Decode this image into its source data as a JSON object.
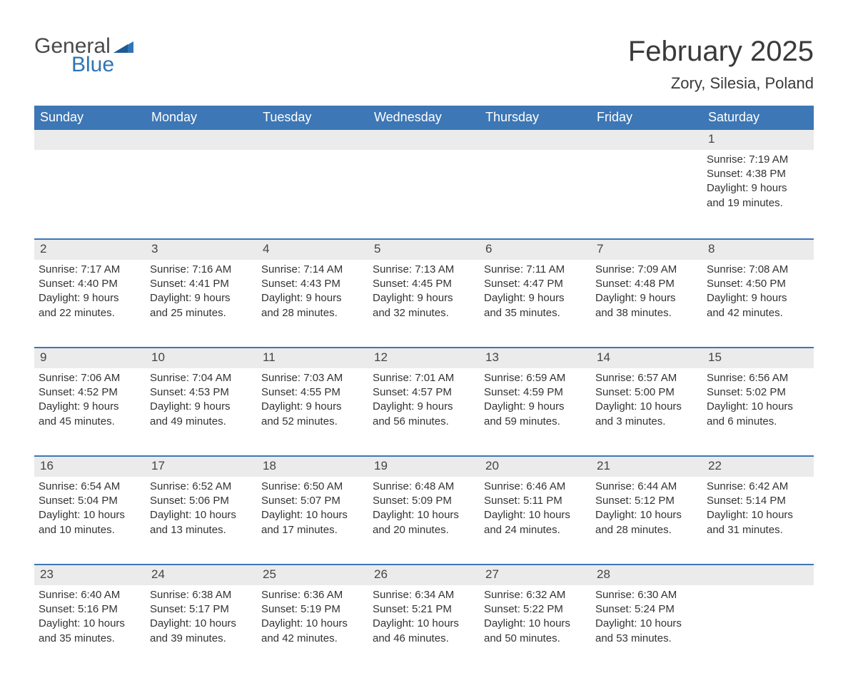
{
  "colors": {
    "header_bg": "#3d77b5",
    "header_text": "#ffffff",
    "daynum_bg": "#ebebeb",
    "border": "#3d77b5",
    "body_text": "#333333",
    "logo_gray": "#4a4a4a",
    "logo_blue": "#2f75b5",
    "page_bg": "#ffffff"
  },
  "logo": {
    "word1": "General",
    "word2": "Blue"
  },
  "title": "February 2025",
  "location": "Zory, Silesia, Poland",
  "day_headers": [
    "Sunday",
    "Monday",
    "Tuesday",
    "Wednesday",
    "Thursday",
    "Friday",
    "Saturday"
  ],
  "weeks": [
    [
      null,
      null,
      null,
      null,
      null,
      null,
      {
        "n": "1",
        "sunrise": "7:19 AM",
        "sunset": "4:38 PM",
        "dl1": "9 hours",
        "dl2": "and 19 minutes."
      }
    ],
    [
      {
        "n": "2",
        "sunrise": "7:17 AM",
        "sunset": "4:40 PM",
        "dl1": "9 hours",
        "dl2": "and 22 minutes."
      },
      {
        "n": "3",
        "sunrise": "7:16 AM",
        "sunset": "4:41 PM",
        "dl1": "9 hours",
        "dl2": "and 25 minutes."
      },
      {
        "n": "4",
        "sunrise": "7:14 AM",
        "sunset": "4:43 PM",
        "dl1": "9 hours",
        "dl2": "and 28 minutes."
      },
      {
        "n": "5",
        "sunrise": "7:13 AM",
        "sunset": "4:45 PM",
        "dl1": "9 hours",
        "dl2": "and 32 minutes."
      },
      {
        "n": "6",
        "sunrise": "7:11 AM",
        "sunset": "4:47 PM",
        "dl1": "9 hours",
        "dl2": "and 35 minutes."
      },
      {
        "n": "7",
        "sunrise": "7:09 AM",
        "sunset": "4:48 PM",
        "dl1": "9 hours",
        "dl2": "and 38 minutes."
      },
      {
        "n": "8",
        "sunrise": "7:08 AM",
        "sunset": "4:50 PM",
        "dl1": "9 hours",
        "dl2": "and 42 minutes."
      }
    ],
    [
      {
        "n": "9",
        "sunrise": "7:06 AM",
        "sunset": "4:52 PM",
        "dl1": "9 hours",
        "dl2": "and 45 minutes."
      },
      {
        "n": "10",
        "sunrise": "7:04 AM",
        "sunset": "4:53 PM",
        "dl1": "9 hours",
        "dl2": "and 49 minutes."
      },
      {
        "n": "11",
        "sunrise": "7:03 AM",
        "sunset": "4:55 PM",
        "dl1": "9 hours",
        "dl2": "and 52 minutes."
      },
      {
        "n": "12",
        "sunrise": "7:01 AM",
        "sunset": "4:57 PM",
        "dl1": "9 hours",
        "dl2": "and 56 minutes."
      },
      {
        "n": "13",
        "sunrise": "6:59 AM",
        "sunset": "4:59 PM",
        "dl1": "9 hours",
        "dl2": "and 59 minutes."
      },
      {
        "n": "14",
        "sunrise": "6:57 AM",
        "sunset": "5:00 PM",
        "dl1": "10 hours",
        "dl2": "and 3 minutes."
      },
      {
        "n": "15",
        "sunrise": "6:56 AM",
        "sunset": "5:02 PM",
        "dl1": "10 hours",
        "dl2": "and 6 minutes."
      }
    ],
    [
      {
        "n": "16",
        "sunrise": "6:54 AM",
        "sunset": "5:04 PM",
        "dl1": "10 hours",
        "dl2": "and 10 minutes."
      },
      {
        "n": "17",
        "sunrise": "6:52 AM",
        "sunset": "5:06 PM",
        "dl1": "10 hours",
        "dl2": "and 13 minutes."
      },
      {
        "n": "18",
        "sunrise": "6:50 AM",
        "sunset": "5:07 PM",
        "dl1": "10 hours",
        "dl2": "and 17 minutes."
      },
      {
        "n": "19",
        "sunrise": "6:48 AM",
        "sunset": "5:09 PM",
        "dl1": "10 hours",
        "dl2": "and 20 minutes."
      },
      {
        "n": "20",
        "sunrise": "6:46 AM",
        "sunset": "5:11 PM",
        "dl1": "10 hours",
        "dl2": "and 24 minutes."
      },
      {
        "n": "21",
        "sunrise": "6:44 AM",
        "sunset": "5:12 PM",
        "dl1": "10 hours",
        "dl2": "and 28 minutes."
      },
      {
        "n": "22",
        "sunrise": "6:42 AM",
        "sunset": "5:14 PM",
        "dl1": "10 hours",
        "dl2": "and 31 minutes."
      }
    ],
    [
      {
        "n": "23",
        "sunrise": "6:40 AM",
        "sunset": "5:16 PM",
        "dl1": "10 hours",
        "dl2": "and 35 minutes."
      },
      {
        "n": "24",
        "sunrise": "6:38 AM",
        "sunset": "5:17 PM",
        "dl1": "10 hours",
        "dl2": "and 39 minutes."
      },
      {
        "n": "25",
        "sunrise": "6:36 AM",
        "sunset": "5:19 PM",
        "dl1": "10 hours",
        "dl2": "and 42 minutes."
      },
      {
        "n": "26",
        "sunrise": "6:34 AM",
        "sunset": "5:21 PM",
        "dl1": "10 hours",
        "dl2": "and 46 minutes."
      },
      {
        "n": "27",
        "sunrise": "6:32 AM",
        "sunset": "5:22 PM",
        "dl1": "10 hours",
        "dl2": "and 50 minutes."
      },
      {
        "n": "28",
        "sunrise": "6:30 AM",
        "sunset": "5:24 PM",
        "dl1": "10 hours",
        "dl2": "and 53 minutes."
      },
      null
    ]
  ],
  "labels": {
    "sunrise": "Sunrise: ",
    "sunset": "Sunset: ",
    "daylight": "Daylight: "
  },
  "typography": {
    "title_fontsize": 40,
    "location_fontsize": 22,
    "header_fontsize": 18,
    "cell_fontsize": 15
  }
}
